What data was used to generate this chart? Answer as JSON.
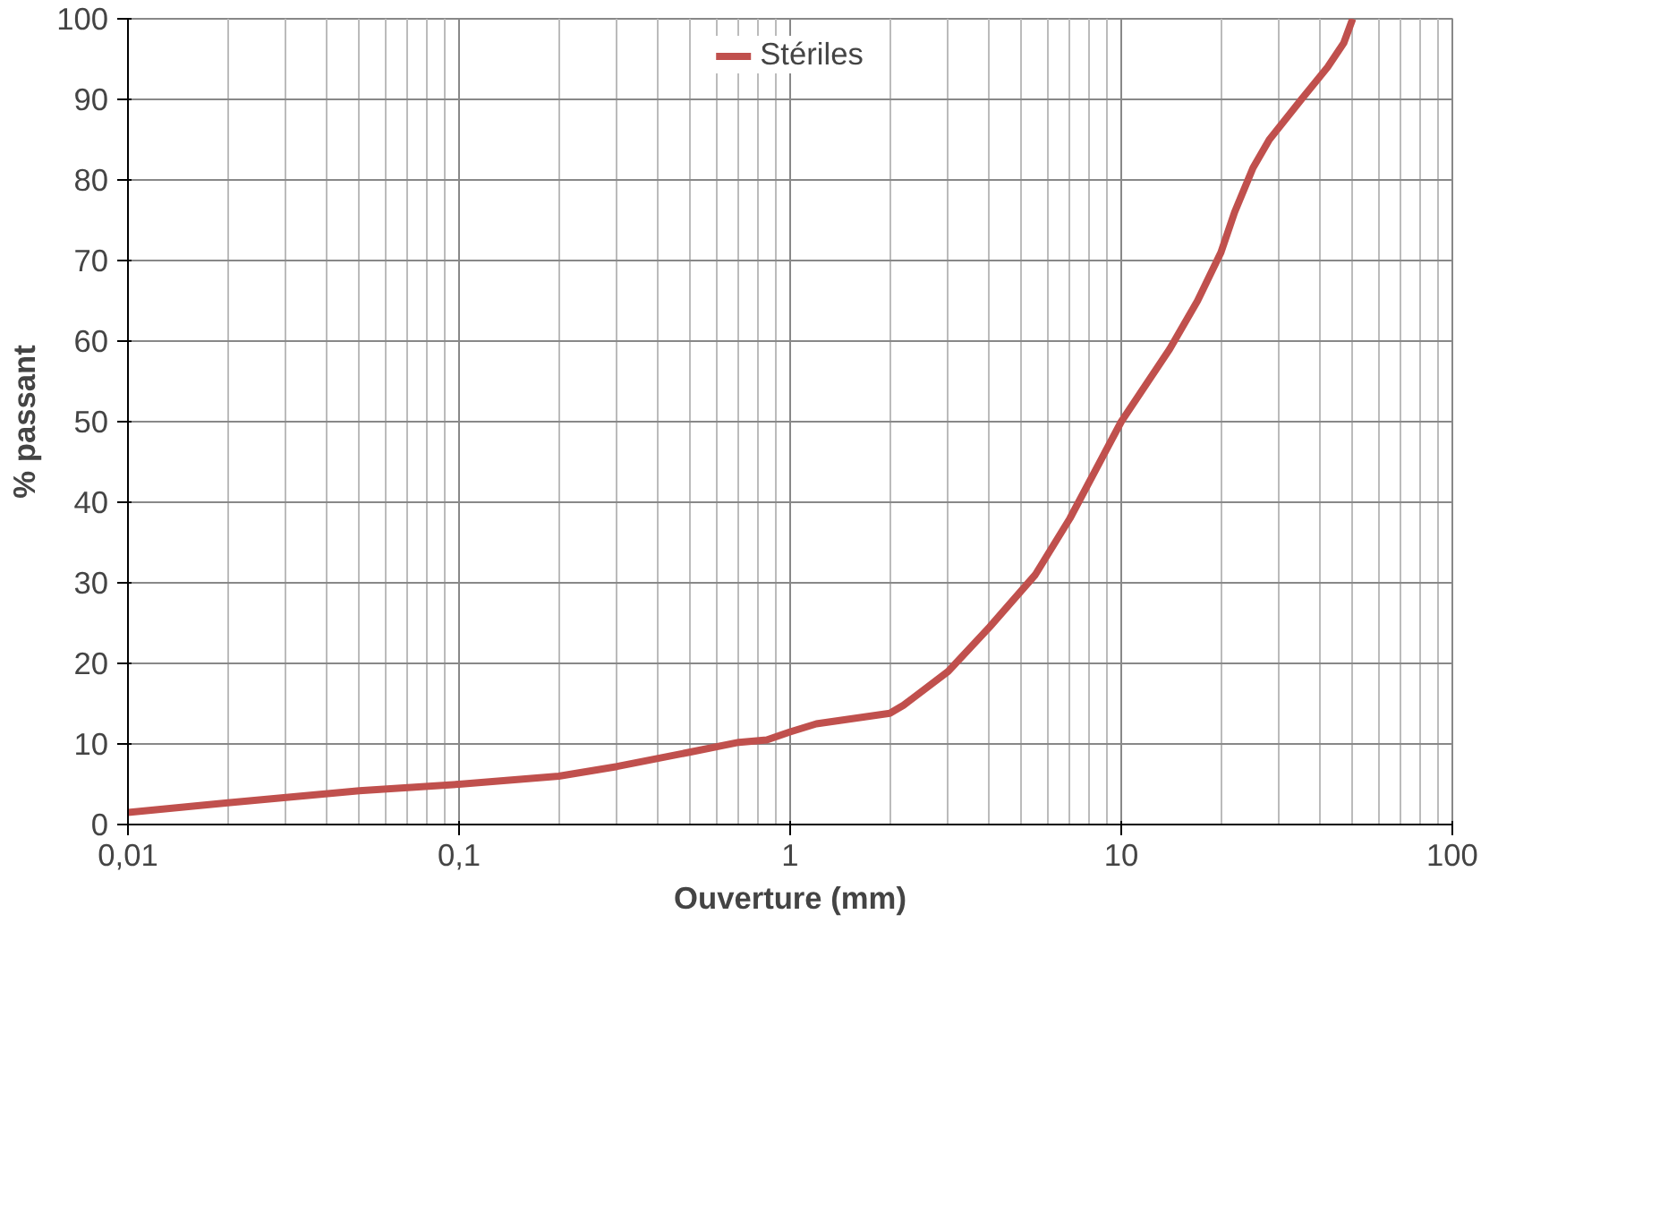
{
  "chart_data": {
    "type": "line",
    "xlabel": "Ouverture (mm)",
    "ylabel": "% passant",
    "log": "x",
    "xlim": [
      0.01,
      100
    ],
    "xticks": [
      {
        "value": 0.01,
        "label": "0,01"
      },
      {
        "value": 0.1,
        "label": "0,1"
      },
      1,
      10,
      100
    ],
    "ylim": [
      0,
      100
    ],
    "yticks": [
      0,
      10,
      20,
      30,
      40,
      50,
      60,
      70,
      80,
      90,
      100
    ],
    "grid": true,
    "legend": "top",
    "x": [
      0.01,
      0.02,
      0.05,
      0.1,
      0.2,
      0.3,
      0.5,
      0.7,
      0.85,
      1.0,
      1.2,
      2.0,
      2.2,
      3,
      4,
      5.5,
      7,
      10,
      14,
      17,
      20,
      22,
      25,
      28,
      35,
      42,
      47,
      50
    ],
    "series": [
      {
        "name": "Stériles",
        "color": "#c0504d",
        "values": [
          1.5,
          2.7,
          4.2,
          5,
          6,
          7.2,
          9,
          10.2,
          10.5,
          11.5,
          12.5,
          13.8,
          14.8,
          19,
          24.5,
          31,
          38,
          50,
          59,
          65,
          71,
          76,
          81.5,
          85,
          90,
          94,
          97,
          100
        ]
      }
    ]
  }
}
